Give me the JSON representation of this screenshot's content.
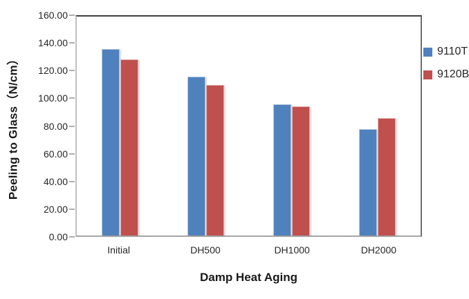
{
  "chart_data": {
    "type": "bar",
    "title": "",
    "categories": [
      "Initial",
      "DH500",
      "DH1000",
      "DH2000"
    ],
    "series": [
      {
        "name": "9110T",
        "color": "#4F81BD",
        "values": [
          136.5,
          116.0,
          96.0,
          77.5
        ]
      },
      {
        "name": "9120B",
        "color": "#C0504D",
        "values": [
          128.5,
          110.0,
          94.5,
          86.0
        ]
      }
    ],
    "xlabel": "Damp Heat Aging",
    "ylabel": "Peeling to Glass（N/cm）",
    "ylim": [
      0,
      160
    ],
    "y_tick_step": 20,
    "y_ticks": [
      "0.00",
      "20.00",
      "40.00",
      "60.00",
      "80.00",
      "100.00",
      "120.00",
      "140.00",
      "160.00"
    ],
    "grid": false,
    "legend_position": "top-right-inside",
    "colors": {
      "plot_border_top": "#3f3f3f",
      "plot_border_right": "#6e6e6e",
      "axis_left": "#bfbfbf",
      "axis_bottom": "#a6a6a6",
      "text": "#262626"
    }
  }
}
